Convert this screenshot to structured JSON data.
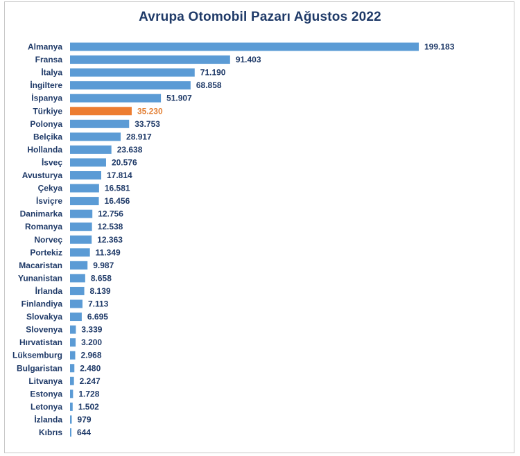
{
  "chart_data": {
    "type": "bar",
    "orientation": "horizontal",
    "title": "Avrupa Otomobil Pazarı Ağustos 2022",
    "categories": [
      "Almanya",
      "Fransa",
      "İtalya",
      "İngiltere",
      "İspanya",
      "Türkiye",
      "Polonya",
      "Belçika",
      "Hollanda",
      "İsveç",
      "Avusturya",
      "Çekya",
      "İsviçre",
      "Danimarka",
      "Romanya",
      "Norveç",
      "Portekiz",
      "Macaristan",
      "Yunanistan",
      "İrlanda",
      "Finlandiya",
      "Slovakya",
      "Slovenya",
      "Hırvatistan",
      "Lüksemburg",
      "Bulgaristan",
      "Litvanya",
      "Estonya",
      "Letonya",
      "İzlanda",
      "Kıbrıs"
    ],
    "values": [
      199183,
      91403,
      71190,
      68858,
      51907,
      35230,
      33753,
      28917,
      23638,
      20576,
      17814,
      16581,
      16456,
      12756,
      12538,
      12363,
      11349,
      9987,
      8658,
      8139,
      7113,
      6695,
      3339,
      3200,
      2968,
      2480,
      2247,
      1728,
      1502,
      979,
      644
    ],
    "value_labels": [
      "199.183",
      "91.403",
      "71.190",
      "68.858",
      "51.907",
      "35.230",
      "33.753",
      "28.917",
      "23.638",
      "20.576",
      "17.814",
      "16.581",
      "16.456",
      "12.756",
      "12.538",
      "12.363",
      "11.349",
      "9.987",
      "8.658",
      "8.139",
      "7.113",
      "6.695",
      "3.339",
      "3.200",
      "2.968",
      "2.480",
      "2.247",
      "1.728",
      "1.502",
      "979",
      "644"
    ],
    "highlight": "Türkiye",
    "colors": {
      "bar": "#5b9bd5",
      "highlight": "#ed7d31",
      "text": "#1f3a68"
    },
    "xlim": [
      0,
      199183
    ],
    "grid": false,
    "legend": "none"
  }
}
